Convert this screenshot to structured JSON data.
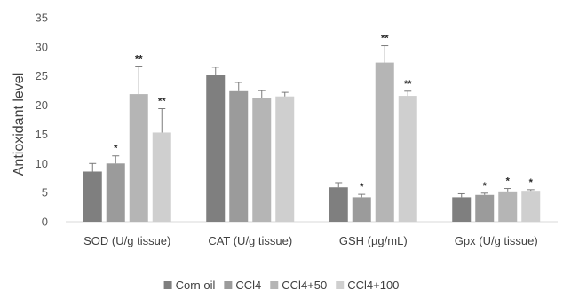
{
  "chart_data": {
    "type": "bar",
    "title": "",
    "xlabel": "",
    "ylabel": "Antioxidant level",
    "ylim": [
      0,
      35
    ],
    "yticks": [
      0,
      5,
      10,
      15,
      20,
      25,
      30,
      35
    ],
    "grid": false,
    "legend_position": "bottom",
    "categories": [
      "SOD (U/g tissue)",
      "CAT (U/g tissue)",
      "GSH (µg/mL)",
      "Gpx (U/g tissue)"
    ],
    "series": [
      {
        "name": "Corn oil",
        "color": "#7f7f7f",
        "values": [
          8.6,
          25.2,
          5.9,
          4.2
        ],
        "errors": [
          1.4,
          1.3,
          0.8,
          0.6
        ],
        "annotations": [
          "",
          "",
          "",
          ""
        ]
      },
      {
        "name": "CCl4",
        "color": "#9b9b9b",
        "values": [
          10.0,
          22.4,
          4.2,
          4.6
        ],
        "errors": [
          1.3,
          1.5,
          0.5,
          0.3
        ],
        "annotations": [
          "*",
          "",
          "*",
          "*"
        ]
      },
      {
        "name": "CCl4+50",
        "color": "#b5b5b5",
        "values": [
          21.9,
          21.2,
          27.3,
          5.2
        ],
        "errors": [
          4.8,
          1.3,
          2.9,
          0.5
        ],
        "annotations": [
          "**",
          "",
          "**",
          "*"
        ]
      },
      {
        "name": "CCl4+100",
        "color": "#cfcfcf",
        "values": [
          15.3,
          21.5,
          21.6,
          5.3
        ],
        "errors": [
          4.1,
          0.7,
          0.8,
          0.2
        ],
        "annotations": [
          "**",
          "",
          "**",
          "*"
        ]
      }
    ]
  }
}
